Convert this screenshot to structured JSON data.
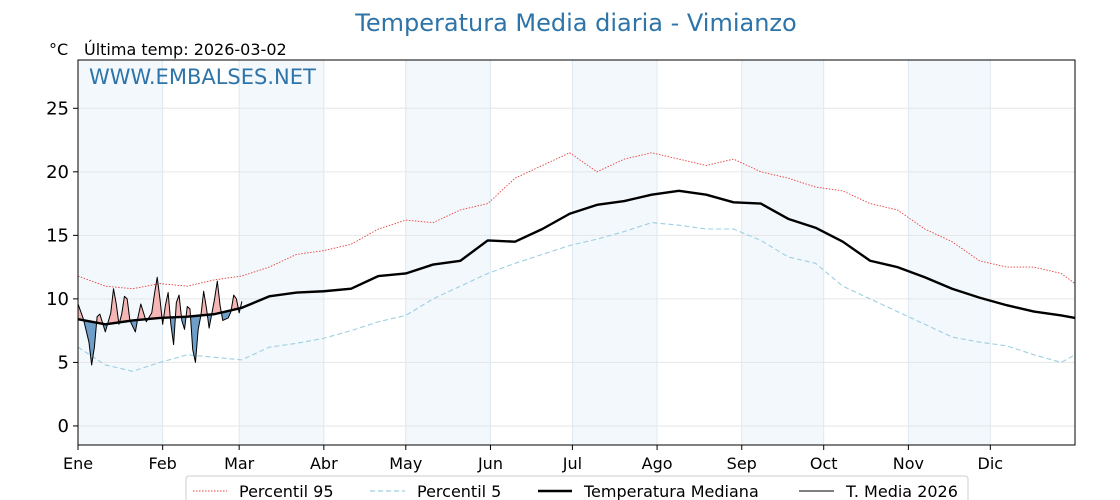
{
  "chart_data": {
    "type": "line",
    "title": "Temperatura Media diaria - Vimianzo",
    "unit_label": "°C",
    "last_temp_label": "Última temp: 2026-03-02",
    "watermark": "WWW.EMBALSES.NET",
    "xlabel": "",
    "ylabel": "",
    "ylim": [
      -1.5,
      28.8
    ],
    "yticks": [
      0,
      5,
      10,
      15,
      20,
      25
    ],
    "months": [
      "Ene",
      "Feb",
      "Mar",
      "Abr",
      "May",
      "Jun",
      "Jul",
      "Ago",
      "Sep",
      "Oct",
      "Nov",
      "Dic"
    ],
    "grid": true,
    "legend_position": "bottom",
    "series": [
      {
        "name": "Percentil 95",
        "color": "#e8413c",
        "style": "dotted",
        "points": [
          [
            0,
            11.8
          ],
          [
            10,
            11.0
          ],
          [
            20,
            10.8
          ],
          [
            30,
            11.2
          ],
          [
            40,
            11.0
          ],
          [
            50,
            11.5
          ],
          [
            60,
            11.8
          ],
          [
            70,
            12.5
          ],
          [
            80,
            13.5
          ],
          [
            90,
            13.8
          ],
          [
            100,
            14.3
          ],
          [
            110,
            15.5
          ],
          [
            120,
            16.2
          ],
          [
            130,
            16.0
          ],
          [
            140,
            17.0
          ],
          [
            150,
            17.5
          ],
          [
            160,
            19.5
          ],
          [
            170,
            20.5
          ],
          [
            180,
            21.5
          ],
          [
            190,
            20.0
          ],
          [
            200,
            21.0
          ],
          [
            210,
            21.5
          ],
          [
            220,
            21.0
          ],
          [
            230,
            20.5
          ],
          [
            240,
            21.0
          ],
          [
            250,
            20.0
          ],
          [
            260,
            19.5
          ],
          [
            270,
            18.8
          ],
          [
            280,
            18.5
          ],
          [
            290,
            17.5
          ],
          [
            300,
            17.0
          ],
          [
            310,
            15.5
          ],
          [
            320,
            14.5
          ],
          [
            330,
            13.0
          ],
          [
            340,
            12.5
          ],
          [
            350,
            12.5
          ],
          [
            360,
            12.0
          ],
          [
            365,
            11.2
          ]
        ]
      },
      {
        "name": "Percentil 5",
        "color": "#9dcfe0",
        "style": "dashed",
        "points": [
          [
            0,
            6.2
          ],
          [
            10,
            4.8
          ],
          [
            20,
            4.3
          ],
          [
            30,
            5.0
          ],
          [
            40,
            5.6
          ],
          [
            50,
            5.4
          ],
          [
            60,
            5.2
          ],
          [
            70,
            6.2
          ],
          [
            80,
            6.5
          ],
          [
            90,
            6.9
          ],
          [
            100,
            7.5
          ],
          [
            110,
            8.2
          ],
          [
            120,
            8.7
          ],
          [
            130,
            10.0
          ],
          [
            140,
            11.0
          ],
          [
            150,
            12.0
          ],
          [
            160,
            12.8
          ],
          [
            170,
            13.5
          ],
          [
            180,
            14.2
          ],
          [
            190,
            14.7
          ],
          [
            200,
            15.3
          ],
          [
            210,
            16.0
          ],
          [
            220,
            15.8
          ],
          [
            230,
            15.5
          ],
          [
            240,
            15.5
          ],
          [
            250,
            14.6
          ],
          [
            260,
            13.3
          ],
          [
            270,
            12.8
          ],
          [
            280,
            11.0
          ],
          [
            290,
            10.0
          ],
          [
            300,
            9.0
          ],
          [
            310,
            8.0
          ],
          [
            320,
            7.0
          ],
          [
            330,
            6.6
          ],
          [
            340,
            6.3
          ],
          [
            350,
            5.6
          ],
          [
            360,
            5.0
          ],
          [
            365,
            5.6
          ]
        ]
      },
      {
        "name": "Temperatura Mediana",
        "color": "#000000",
        "style": "thick",
        "points": [
          [
            0,
            8.4
          ],
          [
            10,
            8.0
          ],
          [
            20,
            8.3
          ],
          [
            30,
            8.5
          ],
          [
            40,
            8.6
          ],
          [
            50,
            8.8
          ],
          [
            60,
            9.3
          ],
          [
            70,
            10.2
          ],
          [
            80,
            10.5
          ],
          [
            90,
            10.6
          ],
          [
            100,
            10.8
          ],
          [
            110,
            11.8
          ],
          [
            120,
            12.0
          ],
          [
            130,
            12.7
          ],
          [
            140,
            13.0
          ],
          [
            150,
            14.6
          ],
          [
            160,
            14.5
          ],
          [
            170,
            15.5
          ],
          [
            180,
            16.7
          ],
          [
            190,
            17.4
          ],
          [
            200,
            17.7
          ],
          [
            210,
            18.2
          ],
          [
            220,
            18.5
          ],
          [
            230,
            18.2
          ],
          [
            240,
            17.6
          ],
          [
            250,
            17.5
          ],
          [
            260,
            16.3
          ],
          [
            270,
            15.6
          ],
          [
            280,
            14.5
          ],
          [
            290,
            13.0
          ],
          [
            300,
            12.5
          ],
          [
            310,
            11.7
          ],
          [
            320,
            10.8
          ],
          [
            330,
            10.1
          ],
          [
            340,
            9.5
          ],
          [
            350,
            9.0
          ],
          [
            360,
            8.7
          ],
          [
            365,
            8.5
          ]
        ]
      },
      {
        "name": "T. Media 2026",
        "color": "#000000",
        "style": "thin",
        "points": [
          [
            0,
            9.6
          ],
          [
            2,
            8.4
          ],
          [
            4,
            6.6
          ],
          [
            5,
            4.8
          ],
          [
            6,
            6.2
          ],
          [
            7,
            8.6
          ],
          [
            8,
            8.8
          ],
          [
            10,
            7.4
          ],
          [
            12,
            8.9
          ],
          [
            13,
            10.8
          ],
          [
            14,
            9.6
          ],
          [
            15,
            8.0
          ],
          [
            16,
            8.8
          ],
          [
            17,
            10.2
          ],
          [
            18,
            10.0
          ],
          [
            19,
            8.3
          ],
          [
            21,
            7.4
          ],
          [
            22,
            8.6
          ],
          [
            23,
            9.6
          ],
          [
            25,
            8.2
          ],
          [
            27,
            8.9
          ],
          [
            28,
            10.4
          ],
          [
            29,
            11.7
          ],
          [
            30,
            10.0
          ],
          [
            31,
            8.0
          ],
          [
            32,
            9.5
          ],
          [
            33,
            10.5
          ],
          [
            34,
            8.0
          ],
          [
            35,
            6.4
          ],
          [
            36,
            9.7
          ],
          [
            37,
            10.3
          ],
          [
            38,
            8.3
          ],
          [
            39,
            7.6
          ],
          [
            40,
            9.4
          ],
          [
            41,
            9.2
          ],
          [
            42,
            6.0
          ],
          [
            43,
            5.0
          ],
          [
            44,
            7.6
          ],
          [
            45,
            8.7
          ],
          [
            46,
            10.6
          ],
          [
            47,
            9.3
          ],
          [
            48,
            7.7
          ],
          [
            50,
            10.0
          ],
          [
            51,
            11.4
          ],
          [
            52,
            9.5
          ],
          [
            53,
            8.3
          ],
          [
            55,
            8.5
          ],
          [
            56,
            9.0
          ],
          [
            57,
            10.3
          ],
          [
            58,
            10.0
          ],
          [
            59,
            8.9
          ],
          [
            60,
            9.8
          ]
        ]
      }
    ]
  }
}
